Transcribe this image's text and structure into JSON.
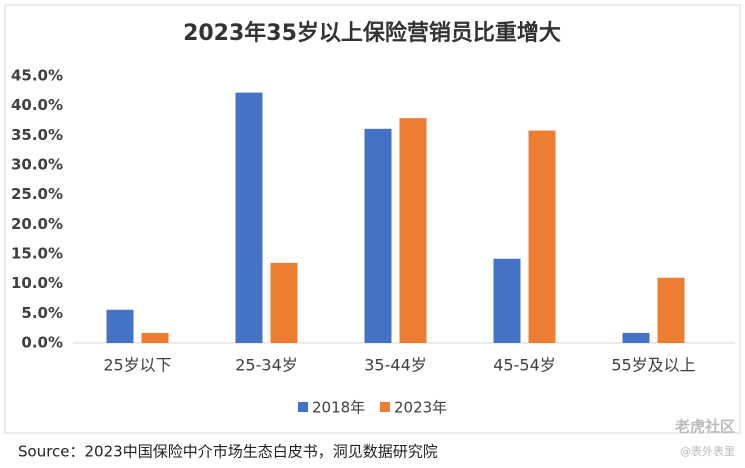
{
  "chart_data": {
    "type": "bar",
    "title": "2023年35岁以上保险营销员比重增大",
    "categories": [
      "25岁以下",
      "25-34岁",
      "35-44岁",
      "45-54岁",
      "55岁及以上"
    ],
    "series": [
      {
        "name": "2018年",
        "color": "#4472c4",
        "values": [
          5.6,
          42.2,
          36.1,
          14.2,
          1.7
        ]
      },
      {
        "name": "2023年",
        "color": "#ed7d31",
        "values": [
          1.7,
          13.5,
          37.9,
          35.8,
          11.0
        ]
      }
    ],
    "ylim": [
      0,
      45
    ],
    "yticks": [
      {
        "value": 0,
        "label": "0.0%"
      },
      {
        "value": 5,
        "label": "5.0%"
      },
      {
        "value": 10,
        "label": "10.0%"
      },
      {
        "value": 15,
        "label": "15.0%"
      },
      {
        "value": 20,
        "label": "20.0%"
      },
      {
        "value": 25,
        "label": "25.0%"
      },
      {
        "value": 30,
        "label": "30.0%"
      },
      {
        "value": 35,
        "label": "35.0%"
      },
      {
        "value": 40,
        "label": "40.0%"
      },
      {
        "value": 45,
        "label": "45.0%"
      }
    ],
    "grid": false,
    "legend": "bottom",
    "source": "Source：2023中国保险中介市场生态白皮书，洞见数据研究院",
    "watermarks": [
      "老虎社区",
      "@表外表里"
    ]
  }
}
